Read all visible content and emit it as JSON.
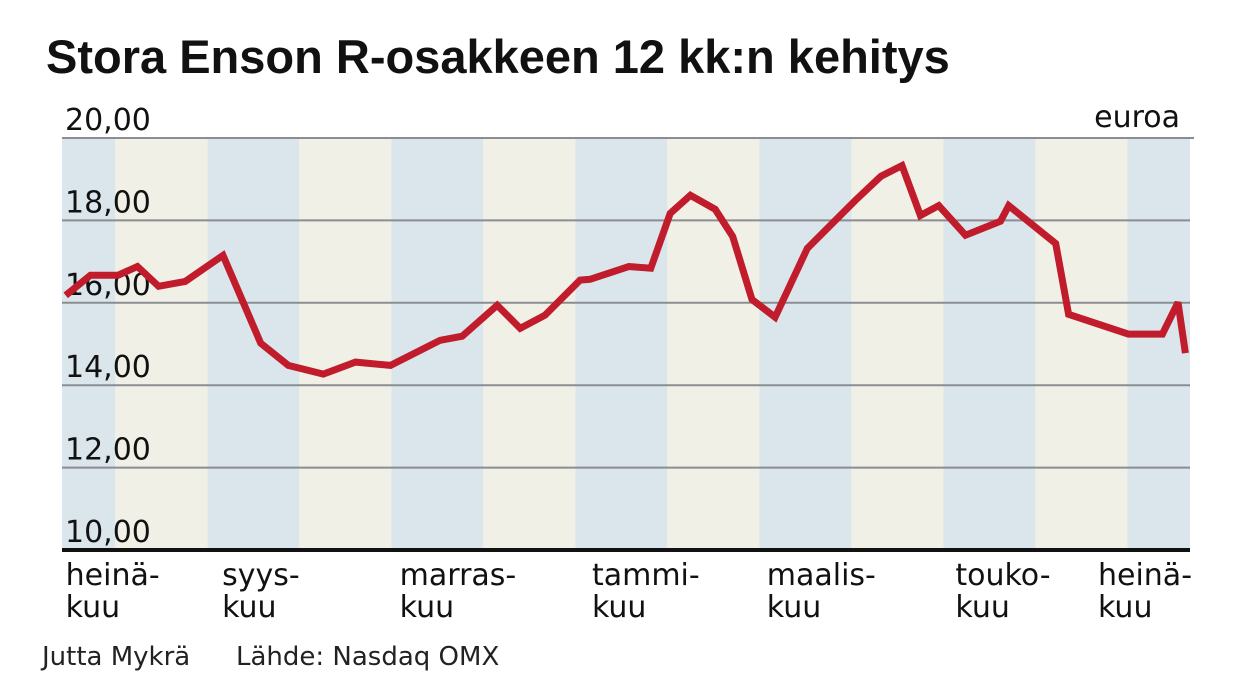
{
  "chart_data": {
    "type": "line",
    "title": "Stora Enson R-osakkeen 12 kk:n kehitys",
    "unit_label": "euroa",
    "xlabel": "",
    "ylabel": "euroa",
    "ylim": [
      10,
      20
    ],
    "xlim": [
      -0.58,
      11.68
    ],
    "yticks": [
      {
        "value": 20,
        "label": "20,00"
      },
      {
        "value": 18,
        "label": "18,00"
      },
      {
        "value": 16,
        "label": "16,00"
      },
      {
        "value": 14,
        "label": "14,00"
      },
      {
        "value": 12,
        "label": "12,00"
      },
      {
        "value": 10,
        "label": "10,00"
      }
    ],
    "month_bands": [
      {
        "start": -0.58,
        "end": 0,
        "tone": "blue"
      },
      {
        "start": 0,
        "end": 1,
        "tone": "beige"
      },
      {
        "start": 1,
        "end": 2,
        "tone": "blue"
      },
      {
        "start": 2,
        "end": 3,
        "tone": "beige"
      },
      {
        "start": 3,
        "end": 4,
        "tone": "blue"
      },
      {
        "start": 4,
        "end": 5,
        "tone": "beige"
      },
      {
        "start": 5,
        "end": 6,
        "tone": "blue"
      },
      {
        "start": 6,
        "end": 7,
        "tone": "beige"
      },
      {
        "start": 7,
        "end": 8,
        "tone": "blue"
      },
      {
        "start": 8,
        "end": 9,
        "tone": "beige"
      },
      {
        "start": 9,
        "end": 10,
        "tone": "blue"
      },
      {
        "start": 10,
        "end": 11,
        "tone": "beige"
      },
      {
        "start": 11,
        "end": 11.68,
        "tone": "blue"
      }
    ],
    "xtick_labels": [
      {
        "at": -0.54,
        "line1": "heinä-",
        "line2": "kuu"
      },
      {
        "at": 1.16,
        "line1": "syys-",
        "line2": "kuu"
      },
      {
        "at": 3.09,
        "line1": "marras-",
        "line2": "kuu"
      },
      {
        "at": 5.18,
        "line1": "tammi-",
        "line2": "kuu"
      },
      {
        "at": 7.08,
        "line1": "maalis-",
        "line2": "kuu"
      },
      {
        "at": 9.13,
        "line1": "touko-",
        "line2": "kuu"
      },
      {
        "at": 10.68,
        "line1": "heinä-",
        "line2": "kuu"
      }
    ],
    "series": [
      {
        "name": "Stora Enso R",
        "color": "#c01c2c",
        "x": [
          -0.54,
          -0.27,
          0.03,
          0.24,
          0.47,
          0.76,
          1.17,
          1.58,
          1.88,
          2.26,
          2.61,
          2.99,
          3.53,
          3.77,
          4.15,
          4.4,
          4.67,
          5.05,
          5.16,
          5.58,
          5.82,
          6.03,
          6.25,
          6.52,
          6.71,
          6.92,
          7.17,
          7.52,
          8.04,
          8.32,
          8.55,
          8.75,
          8.95,
          9.24,
          9.62,
          9.71,
          10.22,
          10.36,
          11.01,
          11.38,
          11.55,
          11.63
        ],
        "y": [
          16.18,
          16.67,
          16.67,
          16.88,
          16.4,
          16.52,
          17.15,
          15.02,
          14.48,
          14.27,
          14.56,
          14.48,
          15.09,
          15.19,
          15.94,
          15.38,
          15.7,
          16.55,
          16.57,
          16.88,
          16.84,
          18.17,
          18.61,
          18.27,
          17.61,
          16.08,
          15.65,
          17.32,
          18.48,
          19.07,
          19.33,
          18.12,
          18.36,
          17.64,
          17.98,
          18.36,
          17.44,
          15.72,
          15.24,
          15.24,
          16.01,
          14.78
        ]
      }
    ],
    "grid": true,
    "colors": {
      "band_blue": "#dbe6ec",
      "band_beige": "#f1f0e6",
      "grid": "#8a8d91",
      "axis": "#111111"
    }
  },
  "footer": {
    "author": "Jutta Mykrä",
    "source": "Lähde: Nasdaq OMX"
  }
}
